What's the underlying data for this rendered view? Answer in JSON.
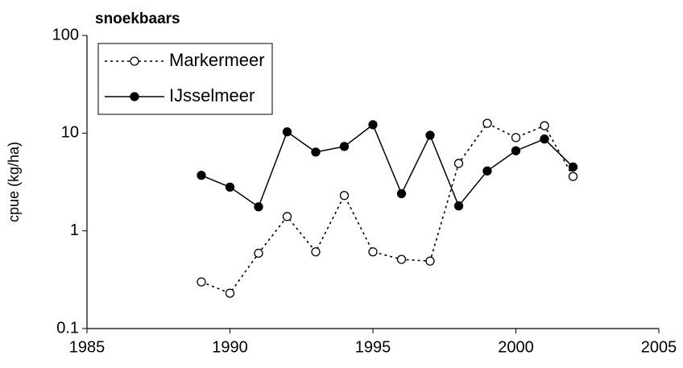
{
  "chart_data": {
    "type": "line",
    "title": "snoekbaars",
    "ylabel": "cpue (kg/ha)",
    "x": [
      1989,
      1990,
      1991,
      1992,
      1993,
      1994,
      1995,
      1996,
      1997,
      1998,
      1999,
      2000,
      2001,
      2002
    ],
    "series": [
      {
        "name": "Markermeer",
        "color": "#000000",
        "linestyle": "dotted",
        "marker": "open",
        "values": [
          0.3,
          0.23,
          0.59,
          1.4,
          0.61,
          2.3,
          0.61,
          0.51,
          0.49,
          4.9,
          12.6,
          9.0,
          11.9,
          3.6
        ]
      },
      {
        "name": "IJsselmeer",
        "color": "#000000",
        "linestyle": "solid",
        "marker": "filled",
        "values": [
          3.7,
          2.8,
          1.76,
          10.3,
          6.4,
          7.3,
          12.2,
          2.4,
          9.5,
          1.8,
          4.1,
          6.6,
          8.7,
          4.5
        ]
      }
    ],
    "xlim": [
      1985,
      2005
    ],
    "xticks": [
      1985,
      1990,
      1995,
      2000,
      2005
    ],
    "ylim": [
      0.1,
      100
    ],
    "yticks": [
      0.1,
      1,
      10,
      100
    ],
    "ylog": true,
    "grid": false,
    "legend": "upper-left"
  }
}
